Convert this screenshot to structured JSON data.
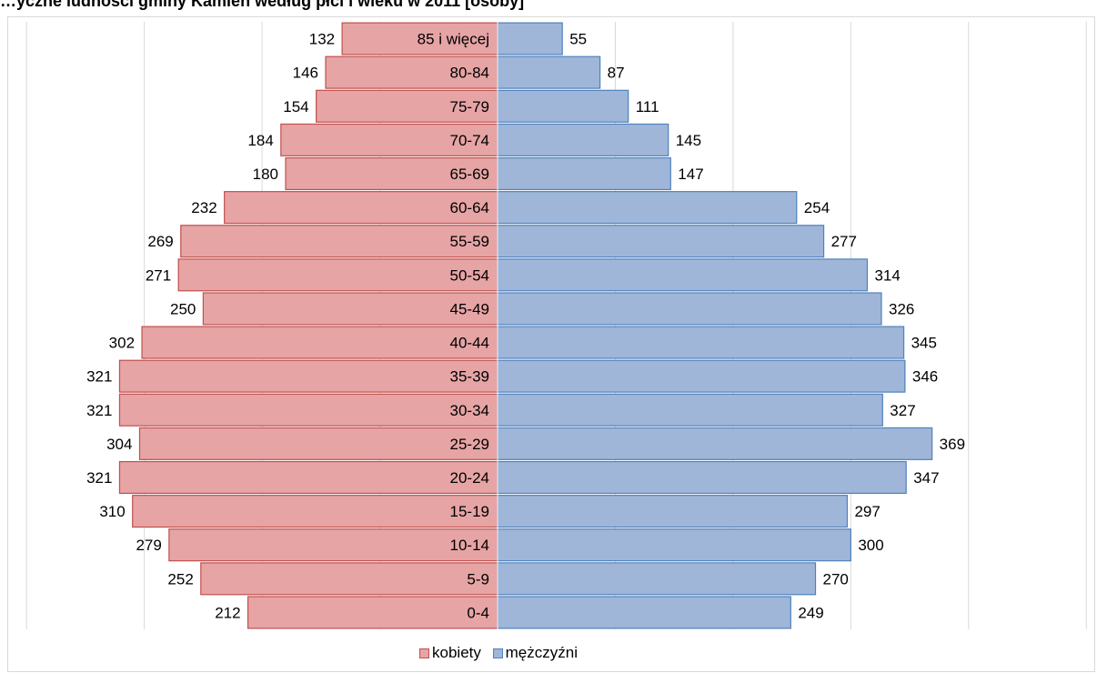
{
  "chart_data": {
    "type": "bar",
    "orientation": "horizontal",
    "title": "…yczne ludności gminy Kamień według płci i wieku w 2011 [osoby]",
    "categories": [
      "0-4",
      "5-9",
      "10-14",
      "15-19",
      "20-24",
      "25-29",
      "30-34",
      "35-39",
      "40-44",
      "45-49",
      "50-54",
      "55-59",
      "60-64",
      "65-69",
      "70-74",
      "75-79",
      "80-84",
      "85 i więcej"
    ],
    "series": [
      {
        "name": "kobiety",
        "color": "#e6a4a5",
        "stroke": "#c0504d",
        "values": [
          212,
          252,
          279,
          310,
          321,
          304,
          321,
          321,
          302,
          250,
          271,
          269,
          232,
          180,
          184,
          154,
          146,
          132
        ]
      },
      {
        "name": "mężczyźni",
        "color": "#9fb6d8",
        "stroke": "#4f81bd",
        "values": [
          249,
          270,
          300,
          297,
          347,
          369,
          327,
          346,
          345,
          326,
          314,
          277,
          254,
          147,
          145,
          111,
          87,
          55
        ]
      }
    ],
    "xlim": [
      -400,
      500
    ],
    "grid": true,
    "legend_position": "bottom"
  }
}
